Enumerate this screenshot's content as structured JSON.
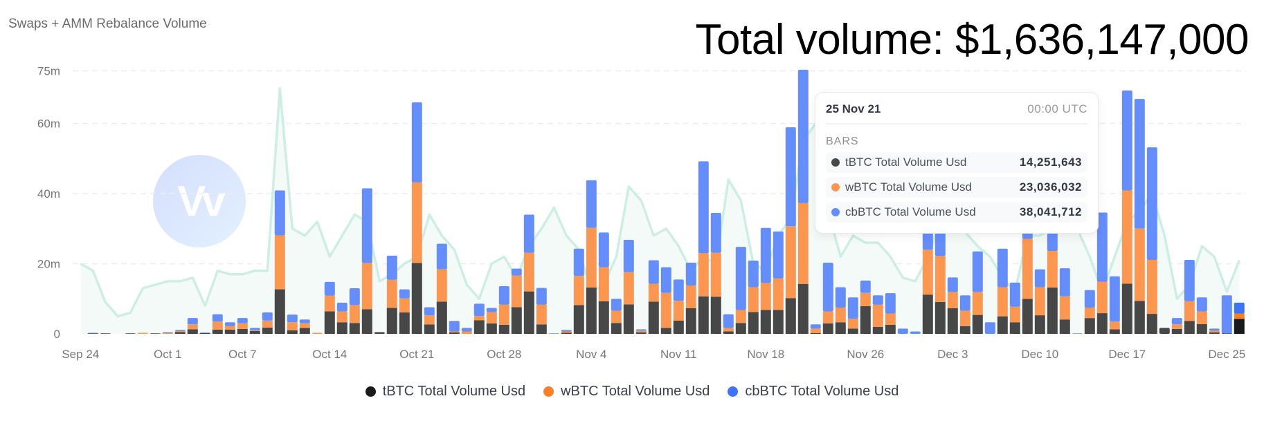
{
  "header": {
    "title": "Swaps + AMM Rebalance Volume",
    "total_volume": "Total volume: $1,636,147,000",
    "watermark_text": "Vv"
  },
  "tooltip": {
    "date": "25 Nov 21",
    "time": "00:00  UTC",
    "section": "BARS",
    "rows": [
      {
        "label": "tBTC Total Volume Usd",
        "value": "14,251,643"
      },
      {
        "label": "wBTC Total Volume Usd",
        "value": "23,036,032"
      },
      {
        "label": "cbBTC Total Volume Usd",
        "value": "38,041,712"
      }
    ]
  },
  "legend": [
    {
      "label": "tBTC Total Volume Usd",
      "color": "#1a1a1a"
    },
    {
      "label": "wBTC Total Volume Usd",
      "color": "#ff7f24"
    },
    {
      "label": "cbBTC Total Volume Usd",
      "color": "#3d74ff"
    }
  ],
  "chart_data": {
    "type": "bar",
    "stacked": true,
    "title": "Swaps + AMM Rebalance Volume",
    "xlabel": "",
    "ylabel": "",
    "ylim": [
      0,
      75
    ],
    "y_unit": "m (USD millions)",
    "yticks": [
      {
        "v": 0,
        "label": "0"
      },
      {
        "v": 20,
        "label": "20m"
      },
      {
        "v": 40,
        "label": "40m"
      },
      {
        "v": 60,
        "label": "60m"
      },
      {
        "v": 75,
        "label": "75m"
      }
    ],
    "x_days": 94,
    "xticks": [
      {
        "day": 0,
        "label": "Sep 24"
      },
      {
        "day": 7,
        "label": "Oct 1"
      },
      {
        "day": 13,
        "label": "Oct 7"
      },
      {
        "day": 20,
        "label": "Oct 14"
      },
      {
        "day": 27,
        "label": "Oct 21"
      },
      {
        "day": 34,
        "label": "Oct 28"
      },
      {
        "day": 41,
        "label": "Nov 4"
      },
      {
        "day": 48,
        "label": "Nov 11"
      },
      {
        "day": 55,
        "label": "Nov 18"
      },
      {
        "day": 63,
        "label": "Nov 26"
      },
      {
        "day": 70,
        "label": "Dec 3"
      },
      {
        "day": 77,
        "label": "Dec 10"
      },
      {
        "day": 84,
        "label": "Dec 17"
      },
      {
        "day": 92,
        "label": "Dec 25"
      }
    ],
    "grid": true,
    "legend_position": "bottom",
    "series": [
      {
        "name": "tBTC Total Volume Usd",
        "color": "#474747",
        "values": [
          0,
          0.1,
          0.1,
          0,
          0.1,
          0,
          0.1,
          0,
          0.5,
          1.3,
          0.2,
          1.2,
          1.2,
          1.4,
          0.8,
          1.8,
          12.7,
          1,
          1.7,
          0,
          6.4,
          3.3,
          3.1,
          7,
          0.5,
          7.4,
          6.1,
          20.2,
          2.7,
          9.2,
          0.4,
          0,
          3.9,
          3,
          2.6,
          7.6,
          12.1,
          2.7,
          0,
          0.3,
          8.2,
          13.2,
          9.3,
          3.1,
          8.4,
          0.4,
          9.2,
          1.7,
          3.8,
          7.3,
          10.7,
          10.6,
          0.7,
          3.1,
          6.2,
          6.8,
          6.8,
          10.2,
          14.25,
          0.2,
          3,
          3.3,
          1.5,
          7.9,
          2,
          2.6,
          0,
          0,
          11.2,
          9.1,
          7.3,
          2.2,
          5.4,
          0,
          5,
          3.3,
          10,
          5.3,
          13.2,
          4.1,
          0,
          4.5,
          5.9,
          1.3,
          14.3,
          9.4,
          5.7,
          1.7,
          1.4,
          3.7,
          2.8,
          0.4,
          0.1,
          4.3
        ]
      },
      {
        "name": "wBTC Total Volume Usd",
        "color": "#fd964f",
        "values": [
          0,
          0,
          0,
          0,
          0,
          0.3,
          0,
          0.3,
          0.3,
          1.4,
          0,
          2.3,
          1,
          1.6,
          0.2,
          2,
          15.4,
          2.3,
          1.3,
          0.3,
          4.5,
          3.1,
          5.1,
          13.2,
          0,
          8,
          4,
          23,
          2.6,
          9.2,
          0.3,
          0.7,
          1.2,
          3.2,
          5.7,
          9,
          11,
          5.6,
          0,
          0.4,
          8.3,
          17,
          9.7,
          3.5,
          9.2,
          0.5,
          5.1,
          10,
          5.6,
          6.5,
          12.3,
          12.5,
          1,
          3.7,
          7.1,
          7.7,
          9,
          20.5,
          23.04,
          1.3,
          3.4,
          4.2,
          2.8,
          3.8,
          6.3,
          3.2,
          0,
          0,
          12.8,
          13.1,
          4.6,
          4.4,
          6.5,
          0,
          8.3,
          4.4,
          17.1,
          8,
          10.4,
          6.6,
          0,
          3,
          8.9,
          2.2,
          26.6,
          20.6,
          15.4,
          0,
          1.3,
          5.6,
          3.6,
          0.5,
          0,
          1.5
        ]
      },
      {
        "name": "cbBTC Total Volume Usd",
        "color": "#648dfd",
        "values": [
          0,
          0.2,
          0,
          0,
          0,
          0,
          0,
          0.2,
          0.3,
          1.8,
          0.1,
          2.1,
          1.1,
          1.5,
          0.7,
          2.3,
          12.8,
          2.2,
          1.1,
          0,
          3.9,
          2.5,
          4.8,
          21.3,
          0,
          6.9,
          2.6,
          22.8,
          2.3,
          7.3,
          3,
          1,
          3.5,
          1.2,
          5.3,
          2,
          10.9,
          4.8,
          0.1,
          0.4,
          7.8,
          13.6,
          9.9,
          3.4,
          9.2,
          0.4,
          6.7,
          7.3,
          6.1,
          6.5,
          26.2,
          11.4,
          3.9,
          18,
          7.6,
          15.7,
          13.4,
          28.2,
          38.04,
          1.2,
          13.9,
          5.8,
          6.1,
          3.5,
          2.7,
          5.8,
          1.5,
          0.7,
          6,
          7.8,
          4.2,
          4.4,
          11.6,
          3.3,
          11,
          6.9,
          2.5,
          5.1,
          6,
          8,
          0.1,
          5,
          19.8,
          12.9,
          28.5,
          37,
          32.1,
          0,
          1.8,
          11.8,
          4,
          0.6,
          10.9,
          3.1
        ]
      }
    ],
    "line": {
      "color": "#cdeee5",
      "values": [
        20,
        18,
        9,
        5,
        6,
        13,
        14,
        15,
        15,
        16,
        8,
        18,
        17,
        17,
        18,
        18,
        70,
        30,
        28,
        32,
        22,
        28,
        34,
        32,
        15,
        17,
        20,
        22,
        34,
        28,
        24,
        14,
        10,
        20,
        22,
        16,
        25,
        30,
        36,
        28,
        24,
        12,
        14,
        22,
        42,
        38,
        28,
        30,
        25,
        18,
        22,
        20,
        44,
        38,
        20,
        18,
        28,
        33,
        55,
        60,
        35,
        22,
        28,
        26,
        26,
        22,
        16,
        15,
        22,
        32,
        30,
        29,
        25,
        22,
        16,
        12,
        28,
        28,
        30,
        33,
        30,
        22,
        12,
        22,
        32,
        35,
        40,
        28,
        10,
        14,
        25,
        22,
        12,
        21
      ]
    }
  }
}
